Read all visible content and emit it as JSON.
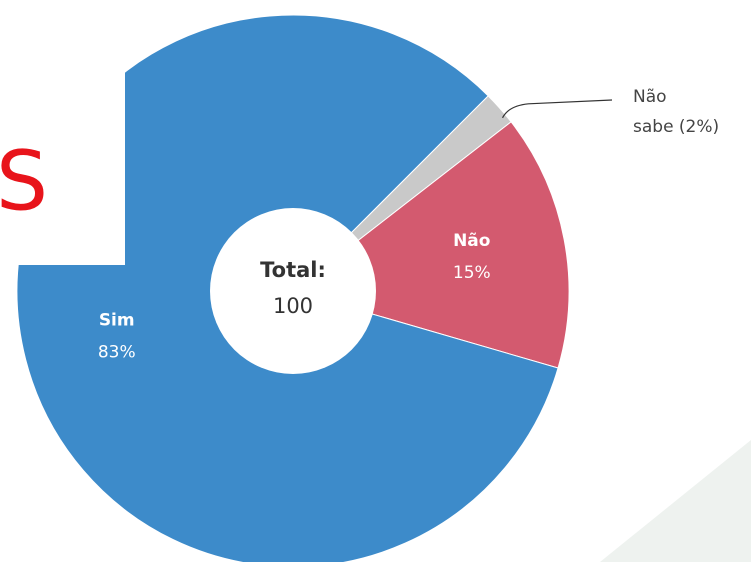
{
  "chart_data": {
    "type": "donut",
    "categories": [
      "Sim",
      "Não",
      "Não sabe (2%)"
    ],
    "values": [
      83,
      15,
      2
    ],
    "value_labels": [
      "83%",
      "15%",
      null
    ],
    "colors": [
      "#3d8bca",
      "#d35a6f",
      "#c9c9c9"
    ],
    "center_title": "Total:",
    "center_value": 100,
    "overlay_text": "S"
  }
}
